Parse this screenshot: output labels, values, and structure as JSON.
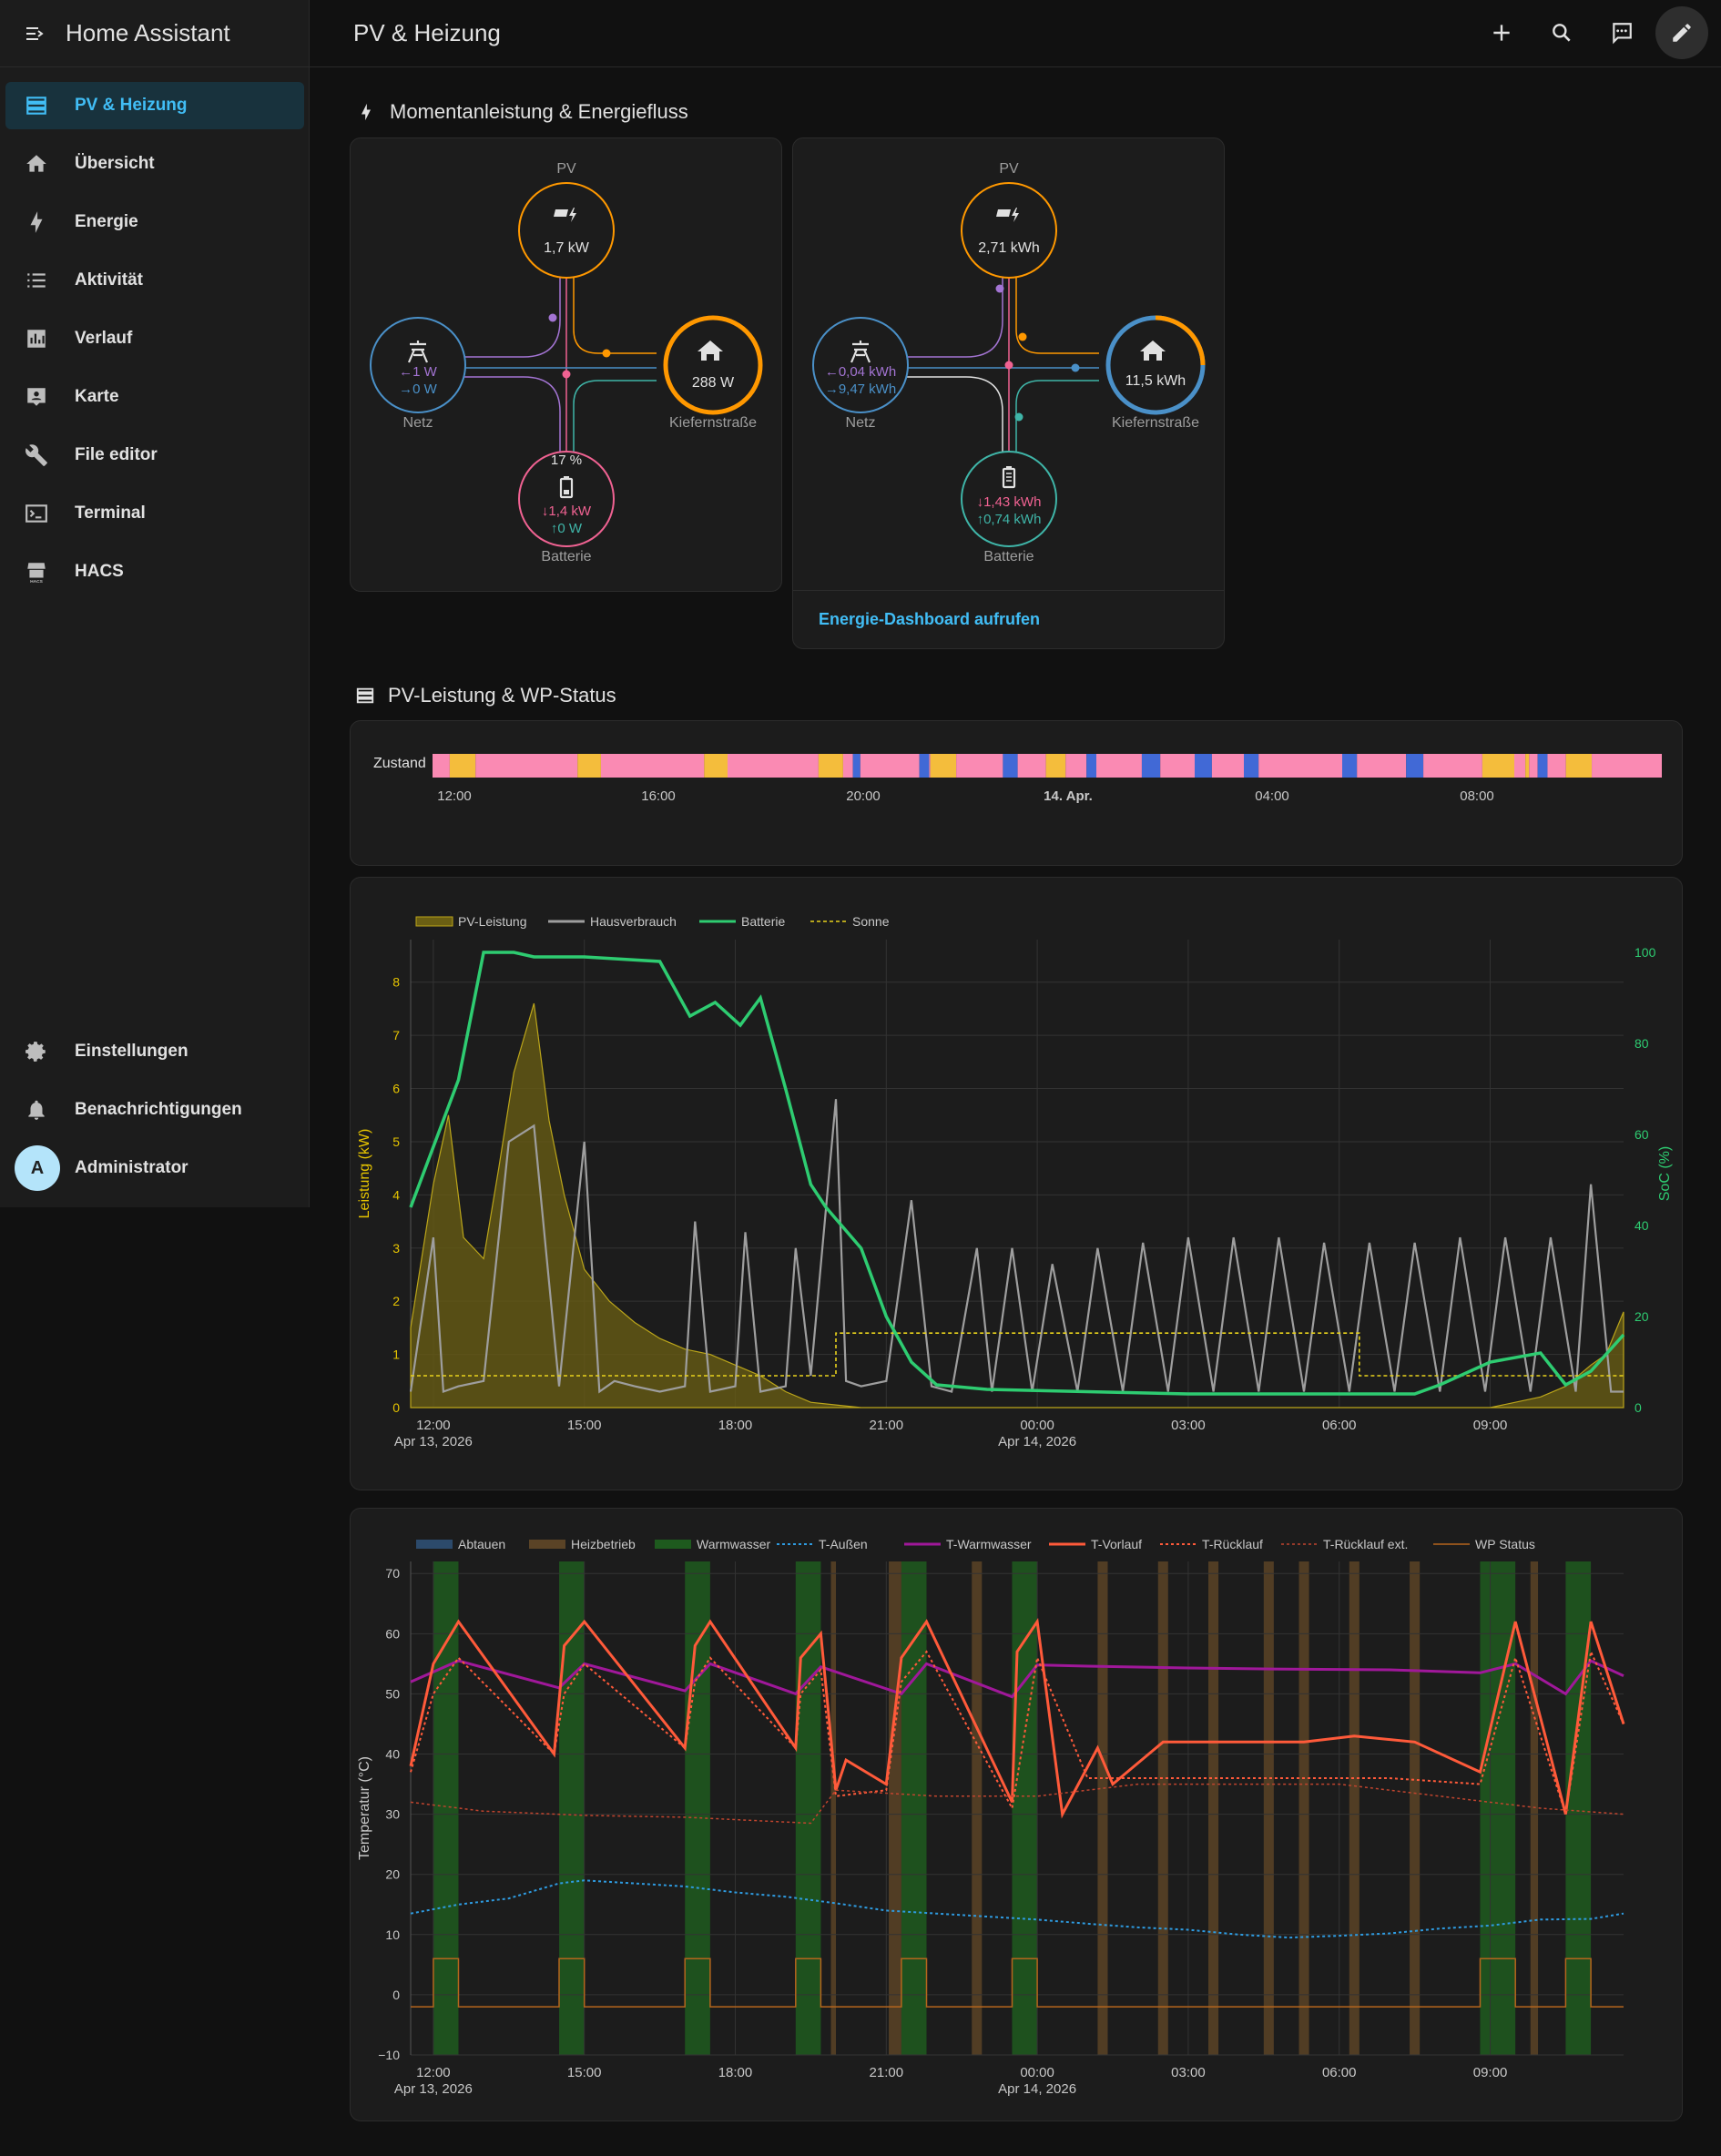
{
  "app": {
    "title": "Home Assistant"
  },
  "sidebar": {
    "items": [
      {
        "label": "PV & Heizung",
        "icon": "view-dashboard-icon",
        "active": true
      },
      {
        "label": "Übersicht",
        "icon": "home-icon"
      },
      {
        "label": "Energie",
        "icon": "lightning-bolt-icon"
      },
      {
        "label": "Aktivität",
        "icon": "format-list-icon"
      },
      {
        "label": "Verlauf",
        "icon": "chart-box-icon"
      },
      {
        "label": "Karte",
        "icon": "map-account-icon"
      },
      {
        "label": "File editor",
        "icon": "wrench-icon"
      },
      {
        "label": "Terminal",
        "icon": "console-icon"
      },
      {
        "label": "HACS",
        "icon": "hacs-icon"
      }
    ],
    "bottom": [
      {
        "label": "Einstellungen",
        "icon": "gear-icon"
      },
      {
        "label": "Benachrichtigungen",
        "icon": "bell-icon"
      },
      {
        "label": "Administrator",
        "avatar": "A"
      }
    ]
  },
  "header": {
    "title": "PV & Heizung"
  },
  "sections": {
    "energy": {
      "title": "Momentanleistung & Energiefluss"
    },
    "pv": {
      "title": "PV-Leistung & WP-Status"
    }
  },
  "flow_now": {
    "pv_label": "PV",
    "pv_value": "1,7 kW",
    "grid_label": "Netz",
    "grid_in": "1 W",
    "grid_out": "0 W",
    "home_label": "Kiefernstraße",
    "home_value": "288 W",
    "battery_label": "Batterie",
    "battery_soc": "17 %",
    "battery_in": "1,4 kW",
    "battery_out": "0 W"
  },
  "flow_day": {
    "pv_label": "PV",
    "pv_value": "2,71 kWh",
    "grid_label": "Netz",
    "grid_in": "0,04 kWh",
    "grid_out": "9,47 kWh",
    "home_label": "Kiefernstraße",
    "home_value": "11,5 kWh",
    "battery_label": "Batterie",
    "battery_in": "1,43 kWh",
    "battery_out": "0,74 kWh",
    "link": "Energie-Dashboard aufrufen"
  },
  "timeline": {
    "label": "Zustand",
    "ticks": [
      "12:00",
      "16:00",
      "20:00",
      "14. Apr.",
      "04:00",
      "08:00"
    ],
    "colors": {
      "pink": "#fa8ab3",
      "orange": "#f4bd3c",
      "blue": "#4169d6"
    },
    "segments": [
      [
        "pink",
        0.0
      ],
      [
        "orange",
        0.014
      ],
      [
        "pink",
        0.035
      ],
      [
        "orange",
        0.118
      ],
      [
        "pink",
        0.137
      ],
      [
        "orange",
        0.221
      ],
      [
        "pink",
        0.24
      ],
      [
        "orange",
        0.314
      ],
      [
        "pink",
        0.334
      ],
      [
        "blue",
        0.342
      ],
      [
        "pink",
        0.348
      ],
      [
        "blue",
        0.396
      ],
      [
        "pink",
        0.404
      ],
      [
        "orange",
        0.405
      ],
      [
        "pink",
        0.426
      ],
      [
        "blue",
        0.464
      ],
      [
        "pink",
        0.476
      ],
      [
        "orange",
        0.499
      ],
      [
        "pink",
        0.515
      ],
      [
        "blue",
        0.532
      ],
      [
        "pink",
        0.54
      ],
      [
        "blue",
        0.577
      ],
      [
        "pink",
        0.592
      ],
      [
        "blue",
        0.62
      ],
      [
        "pink",
        0.634
      ],
      [
        "blue",
        0.66
      ],
      [
        "pink",
        0.672
      ],
      [
        "blue",
        0.74
      ],
      [
        "pink",
        0.752
      ],
      [
        "blue",
        0.792
      ],
      [
        "pink",
        0.806
      ],
      [
        "orange",
        0.854
      ],
      [
        "pink",
        0.88
      ],
      [
        "orange",
        0.889
      ],
      [
        "pink",
        0.892
      ],
      [
        "blue",
        0.899
      ],
      [
        "pink",
        0.907
      ],
      [
        "orange",
        0.922
      ],
      [
        "pink",
        0.943
      ]
    ]
  },
  "chart_data": [
    {
      "type": "line",
      "legend": [
        "PV-Leistung",
        "Hausverbrauch",
        "Batterie",
        "Sonne"
      ],
      "ylabel": "Leistung (kW)",
      "y2label": "SoC (%)",
      "ylim": [
        0,
        8.8
      ],
      "y2lim": [
        0,
        100
      ],
      "yticks": [
        "0",
        "1",
        "2",
        "3",
        "4",
        "5",
        "6",
        "7",
        "8"
      ],
      "y2ticks": [
        "0",
        "20",
        "40",
        "60",
        "80",
        "100"
      ],
      "xticks": [
        "12:00",
        "15:00",
        "18:00",
        "21:00",
        "00:00",
        "03:00",
        "06:00",
        "09:00"
      ],
      "xsub": {
        "12:00": "Apr 13, 2026",
        "00:00": "Apr 14, 2026"
      },
      "x_hours": [
        11.55,
        35.65
      ],
      "colors": {
        "pv": "#bba51a",
        "house": "#9e9e9e",
        "soc": "#2ecc71",
        "sun": "#e8d21c"
      },
      "series": [
        {
          "name": "PV-Leistung",
          "x": [
            11.55,
            12.0,
            12.3,
            12.6,
            13.0,
            13.3,
            13.6,
            14.0,
            14.3,
            14.6,
            15.0,
            15.5,
            16.0,
            16.5,
            17.0,
            17.5,
            18.0,
            18.5,
            19.0,
            19.5,
            20.0,
            20.5,
            21.0,
            33.0,
            34.0,
            34.5,
            35.0,
            35.3,
            35.65
          ],
          "values": [
            1.5,
            4.2,
            5.5,
            3.2,
            2.8,
            4.5,
            6.3,
            7.6,
            5.4,
            4.0,
            2.6,
            2.0,
            1.6,
            1.3,
            1.1,
            1.0,
            0.8,
            0.6,
            0.3,
            0.1,
            0.05,
            0.0,
            0.0,
            0.0,
            0.2,
            0.4,
            0.8,
            1.0,
            1.8
          ]
        },
        {
          "name": "Hausverbrauch",
          "x": [
            11.55,
            12.0,
            12.2,
            12.5,
            13.0,
            13.5,
            14.0,
            14.5,
            15.0,
            15.3,
            15.6,
            16.0,
            16.5,
            17.0,
            17.2,
            17.5,
            18.0,
            18.2,
            18.5,
            19.0,
            19.2,
            19.5,
            20.0,
            20.2,
            20.5,
            21.0,
            21.5,
            21.9,
            22.3,
            22.8,
            23.1,
            23.5,
            23.9,
            24.3,
            24.8,
            25.2,
            25.7,
            26.1,
            26.6,
            27.0,
            27.5,
            27.9,
            28.4,
            28.8,
            29.3,
            29.7,
            30.2,
            30.6,
            31.1,
            31.5,
            32.0,
            32.4,
            32.9,
            33.3,
            33.8,
            34.2,
            34.7,
            35.0,
            35.4,
            35.65
          ],
          "values": [
            0.3,
            3.2,
            0.3,
            0.4,
            0.5,
            5.0,
            5.3,
            0.4,
            5.0,
            0.3,
            0.5,
            0.4,
            0.3,
            0.4,
            3.5,
            0.3,
            0.4,
            3.3,
            0.3,
            0.4,
            3.0,
            0.6,
            5.8,
            0.5,
            0.4,
            0.5,
            3.9,
            0.4,
            0.3,
            3.0,
            0.3,
            3.0,
            0.3,
            2.7,
            0.3,
            3.0,
            0.3,
            3.1,
            0.3,
            3.2,
            0.3,
            3.2,
            0.3,
            3.2,
            0.3,
            3.1,
            0.3,
            3.1,
            0.3,
            3.1,
            0.3,
            3.2,
            0.3,
            3.2,
            0.3,
            3.2,
            0.3,
            4.2,
            0.3,
            0.3
          ]
        },
        {
          "name": "Batterie",
          "x": [
            11.55,
            12.5,
            13.0,
            13.6,
            14.0,
            15.0,
            16.5,
            17.1,
            17.6,
            18.1,
            18.5,
            19.0,
            19.5,
            19.8,
            20.5,
            21.0,
            21.5,
            22.0,
            23.0,
            27.0,
            31.5,
            32.0,
            33.0,
            34.0,
            34.5,
            35.0,
            35.65
          ],
          "values": [
            44,
            72,
            100,
            100,
            99,
            99,
            98,
            86,
            89,
            84,
            90,
            70,
            49,
            44,
            35,
            20,
            10,
            5,
            4,
            3,
            3,
            5,
            10,
            12,
            5,
            8,
            16
          ]
        },
        {
          "name": "Sonne",
          "x": [
            11.55,
            20.0,
            20.0,
            30.4,
            30.4,
            35.65
          ],
          "values": [
            0.6,
            0.6,
            1.4,
            1.4,
            0.6,
            0.6
          ]
        }
      ]
    },
    {
      "type": "line",
      "legend": [
        "Abtauen",
        "Heizbetrieb",
        "Warmwasser",
        "T-Außen",
        "T-Warmwasser",
        "T-Vorlauf",
        "T-Rücklauf",
        "T-Rücklauf ext.",
        "WP Status"
      ],
      "ylabel": "Temperatur (°C)",
      "ylim": [
        -10,
        72
      ],
      "yticks": [
        "−10",
        "0",
        "10",
        "20",
        "30",
        "40",
        "50",
        "60",
        "70"
      ],
      "xticks": [
        "12:00",
        "15:00",
        "18:00",
        "21:00",
        "00:00",
        "03:00",
        "06:00",
        "09:00"
      ],
      "xsub": {
        "12:00": "Apr 13, 2026",
        "00:00": "Apr 14, 2026"
      },
      "x_hours": [
        11.55,
        35.65
      ],
      "colors": {
        "abtauen": "#2c4a6b",
        "heiz": "#5a4326",
        "ww": "#1e5a1e",
        "t_aussen": "#2e9be0",
        "t_ww": "#a0189a",
        "t_vorlauf": "#ff5a3a",
        "t_rueck": "#ff5a3a",
        "t_rueck_ext": "#c0442e",
        "wp_status": "#b5651d"
      },
      "bands": [
        {
          "name": "Warmwasser",
          "x": [
            [
              12.0,
              12.5
            ],
            [
              14.5,
              15.0
            ],
            [
              17.0,
              17.5
            ],
            [
              19.2,
              19.7
            ],
            [
              21.3,
              21.8
            ],
            [
              23.5,
              24.0
            ],
            [
              32.8,
              33.5
            ],
            [
              34.5,
              35.0
            ]
          ]
        },
        {
          "name": "Heizbetrieb",
          "x": [
            [
              19.9,
              20.0
            ],
            [
              21.05,
              21.3
            ],
            [
              22.7,
              22.9
            ],
            [
              25.2,
              25.4
            ],
            [
              26.4,
              26.6
            ],
            [
              27.4,
              27.6
            ],
            [
              28.5,
              28.7
            ],
            [
              29.2,
              29.4
            ],
            [
              30.2,
              30.4
            ],
            [
              31.4,
              31.6
            ],
            [
              33.8,
              33.95
            ]
          ]
        }
      ],
      "series": [
        {
          "name": "T-Außen",
          "x": [
            11.55,
            12.5,
            13.5,
            14.5,
            15.0,
            16.0,
            17.0,
            18.0,
            19.0,
            20.0,
            21.0,
            22.0,
            23.0,
            24.0,
            25.0,
            26.0,
            27.0,
            28.0,
            29.0,
            30.0,
            31.0,
            32.0,
            33.0,
            34.0,
            35.0,
            35.65
          ],
          "values": [
            13.5,
            15.0,
            16.0,
            18.5,
            19.0,
            18.5,
            18.0,
            17.0,
            16.3,
            15.2,
            14.0,
            13.5,
            13.0,
            12.5,
            11.8,
            11.2,
            10.8,
            10.0,
            9.5,
            9.8,
            10.2,
            11.0,
            11.5,
            12.5,
            12.6,
            13.5
          ]
        },
        {
          "name": "T-Warmwasser",
          "x": [
            11.55,
            12.5,
            14.5,
            15.0,
            17.0,
            17.5,
            19.2,
            19.7,
            21.3,
            21.8,
            23.5,
            24.0,
            25.0,
            27.0,
            29.0,
            31.0,
            32.8,
            33.5,
            34.5,
            35.0,
            35.65
          ],
          "values": [
            52.0,
            55.5,
            51.0,
            55.0,
            50.5,
            55.0,
            50.0,
            54.5,
            50.0,
            55.0,
            49.5,
            54.8,
            54.6,
            54.3,
            54.1,
            54.0,
            53.5,
            55.0,
            50.0,
            55.5,
            53.0
          ]
        },
        {
          "name": "T-Vorlauf",
          "x": [
            11.55,
            12.0,
            12.5,
            14.4,
            14.6,
            15.0,
            17.0,
            17.2,
            17.5,
            19.2,
            19.3,
            19.7,
            20.0,
            20.2,
            21.0,
            21.3,
            21.8,
            23.5,
            23.6,
            24.0,
            24.5,
            25.2,
            25.5,
            26.5,
            27.5,
            28.5,
            29.3,
            30.3,
            31.5,
            32.8,
            33.5,
            34.5,
            35.0,
            35.65
          ],
          "values": [
            38.0,
            55.0,
            62.0,
            40.0,
            58.0,
            62.0,
            41.0,
            58.0,
            62.0,
            41.0,
            56.0,
            60.0,
            34.0,
            39.0,
            35.0,
            56.0,
            62.0,
            32.0,
            57.0,
            62.0,
            30.0,
            41.0,
            35.0,
            42.0,
            42.0,
            42.0,
            42.0,
            43.0,
            42.0,
            37.0,
            62.0,
            30.0,
            62.0,
            45.0
          ]
        },
        {
          "name": "T-Rücklauf",
          "x": [
            11.55,
            12.0,
            12.5,
            14.4,
            14.6,
            15.0,
            17.0,
            17.2,
            17.5,
            19.2,
            19.3,
            19.7,
            20.0,
            21.0,
            21.3,
            21.8,
            23.5,
            24.0,
            25.0,
            27.0,
            29.0,
            31.0,
            32.8,
            33.5,
            34.5,
            35.0,
            35.65
          ],
          "values": [
            37.0,
            50.0,
            56.0,
            40.0,
            50.0,
            55.0,
            41.0,
            52.0,
            56.0,
            41.0,
            50.0,
            54.0,
            33.0,
            34.0,
            52.0,
            57.0,
            31.0,
            56.0,
            36.0,
            36.0,
            36.0,
            36.0,
            35.0,
            56.0,
            30.0,
            57.0,
            45.0
          ]
        },
        {
          "name": "T-Rücklauf ext.",
          "x": [
            11.55,
            13.0,
            15.0,
            17.0,
            19.5,
            20.0,
            22.0,
            24.0,
            26.0,
            28.0,
            30.0,
            32.0,
            34.0,
            35.65
          ],
          "values": [
            32.0,
            30.5,
            29.8,
            29.5,
            28.5,
            34.0,
            33.0,
            33.0,
            35.0,
            35.0,
            35.0,
            33.0,
            31.0,
            30.0
          ]
        },
        {
          "name": "WP Status",
          "x": [
            11.55,
            12.0,
            12.0,
            12.5,
            12.5,
            14.5,
            14.5,
            15.0,
            15.0,
            17.0,
            17.0,
            17.5,
            17.5,
            19.2,
            19.2,
            19.7,
            19.7,
            21.3,
            21.3,
            21.8,
            21.8,
            23.5,
            23.5,
            24.0,
            24.0,
            32.8,
            32.8,
            33.5,
            33.5,
            34.5,
            34.5,
            35.0,
            35.0,
            35.65
          ],
          "values": [
            -2,
            -2,
            6,
            6,
            -2,
            -2,
            6,
            6,
            -2,
            -2,
            6,
            6,
            -2,
            -2,
            6,
            6,
            -2,
            -2,
            6,
            6,
            -2,
            -2,
            6,
            6,
            -2,
            -2,
            6,
            6,
            -2,
            -2,
            6,
            6,
            -2,
            -2
          ]
        }
      ]
    }
  ]
}
